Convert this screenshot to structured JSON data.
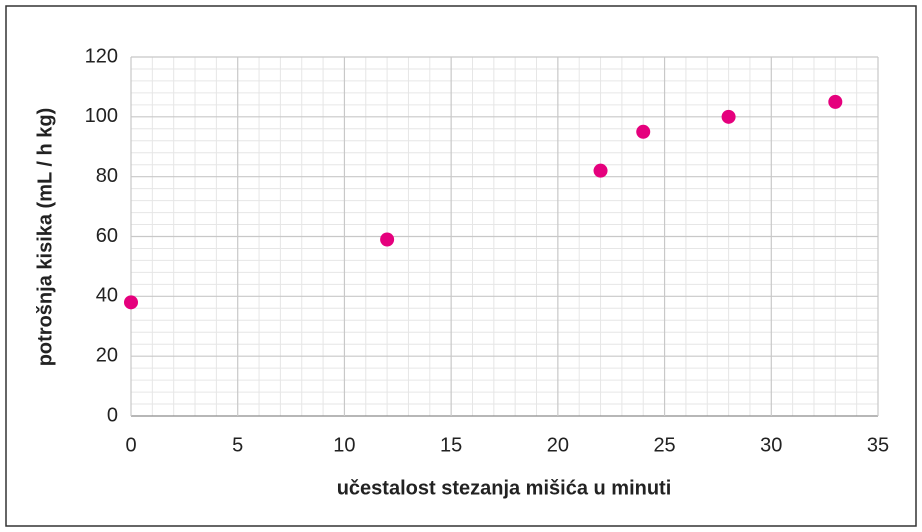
{
  "chart_data": {
    "type": "scatter",
    "x_label": "učestalost stezanja mišića u minuti",
    "y_label": "potrošnja kisika (mL / h kg)",
    "series": [
      {
        "color": "#e5007d",
        "x": [
          0,
          12,
          22,
          24,
          28,
          33
        ],
        "values": [
          38,
          59,
          82,
          95,
          100,
          105
        ]
      }
    ],
    "xlim": [
      0,
      35
    ],
    "xticks": [
      0,
      5,
      10,
      15,
      20,
      25,
      30,
      35
    ],
    "ylim": [
      0,
      120
    ],
    "yticks": [
      0,
      20,
      40,
      60,
      80,
      100,
      120
    ],
    "grid": true
  }
}
